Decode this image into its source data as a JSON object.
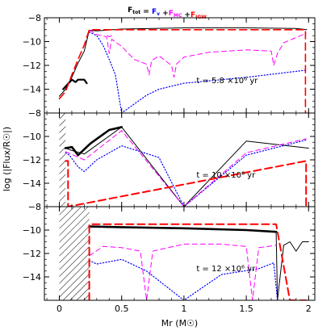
{
  "chart_data": {
    "type": "line",
    "title": {
      "parts": [
        {
          "text": "F",
          "sub": "tot",
          "color": "#000000"
        },
        {
          "text": " = ",
          "sub": "",
          "color": "#000000"
        },
        {
          "text": "F",
          "sub": "v",
          "color": "#0000ff"
        },
        {
          "text": " +",
          "sub": "",
          "color": "#000000"
        },
        {
          "text": "F",
          "sub": "MC",
          "color": "#ff00ff"
        },
        {
          "text": " +",
          "sub": "",
          "color": "#000000"
        },
        {
          "text": "F",
          "sub": "IGW",
          "color": "#ff0000"
        }
      ]
    },
    "xlabel": "Mr  (M☉)",
    "ylabel": "log (|Flux/R☉|)",
    "xlim": [
      -0.12,
      2.05
    ],
    "ylim": [
      -16,
      -8
    ],
    "x_ticks": [
      0,
      0.5,
      1,
      1.5,
      2
    ],
    "x_tick_labels": [
      "0",
      "0.5",
      "1",
      "1.5",
      "2"
    ],
    "y_ticks": [
      -8,
      -10,
      -12,
      -14
    ],
    "y_tick_labels": [
      "−8",
      "−10",
      "−12",
      "−14"
    ],
    "series_styles": {
      "tot": {
        "color": "#000000",
        "dash": "none"
      },
      "v": {
        "color": "#0000ff",
        "dash": "1.2 2.4"
      },
      "mc": {
        "color": "#ff00ff",
        "dash": "6 4"
      },
      "igw": {
        "color": "#ff0000",
        "dash": "9 5"
      }
    },
    "panels": [
      {
        "annotation": "t = 5.8 ×10⁶ yr",
        "hatch_xrange": null,
        "series": [
          {
            "key": "tot",
            "width": 1.0,
            "x": [
              0.0,
              0.05,
              0.1,
              0.15,
              0.2,
              0.24,
              0.3,
              0.5,
              1.0,
              1.5,
              1.9,
              1.985
            ],
            "y": [
              -14.6,
              -14.0,
              -13.0,
              -11.8,
              -10.8,
              -9.05,
              -9.1,
              -8.95,
              -8.85,
              -8.85,
              -8.9,
              -9.0
            ]
          },
          {
            "key": "tot",
            "width": 2.2,
            "x": [
              0.03,
              0.1,
              0.13,
              0.15,
              0.2,
              0.22
            ],
            "y": [
              -14.0,
              -13.2,
              -13.4,
              -13.2,
              -13.2,
              -13.5
            ]
          },
          {
            "key": "v",
            "width": 1.2,
            "x": [
              0.24,
              0.3,
              0.35,
              0.4,
              0.45,
              0.5,
              0.7,
              0.8,
              1.0,
              1.5,
              1.98
            ],
            "y": [
              -9.2,
              -9.5,
              -10.3,
              -11.5,
              -12.8,
              -16.0,
              -14.5,
              -14.0,
              -13.5,
              -13.0,
              -12.4
            ]
          },
          {
            "key": "mc",
            "width": 1.0,
            "x": [
              0.24,
              0.3,
              0.38,
              0.4,
              0.42,
              0.5,
              0.6,
              0.7,
              0.72,
              0.74,
              0.8,
              0.9,
              0.92,
              0.94,
              1.0,
              1.2,
              1.5,
              1.7,
              1.72,
              1.75,
              1.8,
              1.98
            ],
            "y": [
              -9.05,
              -9.4,
              -9.6,
              -11.0,
              -9.8,
              -10.4,
              -11.5,
              -11.9,
              -12.8,
              -11.6,
              -11.2,
              -12.0,
              -13.0,
              -11.9,
              -11.3,
              -10.9,
              -10.7,
              -10.8,
              -12.0,
              -11.0,
              -10.1,
              -9.3
            ]
          },
          {
            "key": "mc",
            "width": 1.0,
            "x": [
              0.385,
              0.4,
              0.42
            ],
            "y": [
              -9.5,
              -9.6,
              -9.5
            ]
          },
          {
            "key": "igw",
            "width": 1.6,
            "x": [
              0.0,
              0.05,
              0.1,
              0.15,
              0.2,
              0.24,
              1.975,
              1.975
            ],
            "y": [
              -14.8,
              -14.2,
              -12.8,
              -11.5,
              -10.3,
              -9.0,
              -9.0,
              -16.0
            ]
          }
        ]
      },
      {
        "annotation": "t = 10 ×10⁶ yr",
        "hatch_xrange": [
          0.0,
          0.05
        ],
        "series": [
          {
            "key": "tot",
            "width": 1.0,
            "x": [
              0.05,
              0.1,
              0.2,
              0.5,
              1.0,
              1.5,
              2.0
            ],
            "y": [
              -11.0,
              -11.2,
              -11.5,
              -9.2,
              -16.0,
              -10.4,
              -11.0
            ]
          },
          {
            "key": "tot",
            "width": 2.6,
            "x": [
              0.05,
              0.1,
              0.15,
              0.25,
              0.4,
              0.5
            ],
            "y": [
              -11.0,
              -10.9,
              -11.6,
              -10.6,
              -9.45,
              -9.2
            ]
          },
          {
            "key": "v",
            "width": 1.2,
            "x": [
              0.05,
              0.08,
              0.15,
              0.2,
              0.3,
              0.5,
              0.8,
              1.0,
              1.5,
              1.98
            ],
            "y": [
              -11.4,
              -11.6,
              -12.6,
              -13.0,
              -12.0,
              -10.8,
              -11.8,
              -16.0,
              -11.6,
              -10.3
            ]
          },
          {
            "key": "mc",
            "width": 1.0,
            "x": [
              0.05,
              0.2,
              0.5,
              1.0,
              1.5,
              1.98
            ],
            "y": [
              -11.3,
              -12.0,
              -9.5,
              -16.0,
              -11.4,
              -10.2
            ]
          },
          {
            "key": "igw",
            "width": 2.0,
            "x": [
              0.05,
              0.07,
              0.07,
              1.98,
              1.98
            ],
            "y": [
              -12.1,
              -12.1,
              -16.0,
              -12.1,
              -16.0
            ]
          }
        ]
      },
      {
        "annotation": "t = 12 ×10⁶ yr",
        "hatch_xrange": [
          0.0,
          0.24
        ],
        "series": [
          {
            "key": "tot",
            "width": 2.6,
            "x": [
              0.24,
              0.5,
              1.0,
              1.5,
              1.74
            ],
            "y": [
              -9.7,
              -9.75,
              -9.85,
              -10.0,
              -10.15
            ]
          },
          {
            "key": "tot",
            "width": 1.0,
            "x": [
              1.74,
              1.75,
              1.8,
              1.85,
              1.9,
              1.95,
              2.0
            ],
            "y": [
              -10.2,
              -16.0,
              -11.3,
              -11.0,
              -11.8,
              -11.0,
              -11.0
            ]
          },
          {
            "key": "v",
            "width": 1.2,
            "x": [
              0.24,
              0.3,
              0.5,
              0.7,
              1.0,
              1.3,
              1.6,
              1.72,
              1.75
            ],
            "y": [
              -12.6,
              -12.9,
              -12.5,
              -13.5,
              -16.0,
              -13.8,
              -13.3,
              -12.8,
              -16.0
            ]
          },
          {
            "key": "mc",
            "width": 1.0,
            "x": [
              0.24,
              0.35,
              0.5,
              0.65,
              0.7,
              0.75,
              1.0,
              1.3,
              1.5,
              1.55,
              1.6,
              1.74
            ],
            "y": [
              -12.2,
              -11.4,
              -11.5,
              -11.8,
              -16.0,
              -11.8,
              -11.2,
              -11.2,
              -11.4,
              -16.0,
              -11.5,
              -11.3
            ]
          },
          {
            "key": "igw",
            "width": 2.0,
            "x": [
              0.24,
              0.24,
              1.74,
              1.85,
              1.85,
              1.98
            ],
            "y": [
              -16.0,
              -9.5,
              -9.5,
              -16.0,
              -16.0,
              -16.0
            ]
          }
        ]
      }
    ]
  }
}
